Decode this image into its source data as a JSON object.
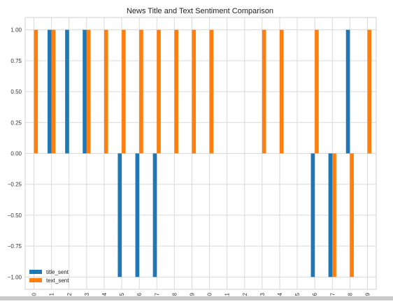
{
  "chart_data": {
    "type": "bar",
    "title": "News Title and Text Sentiment Comparison",
    "xlabel": "",
    "ylabel": "",
    "ylim": [
      -1.1,
      1.1
    ],
    "yticks": [
      1.0,
      0.75,
      0.5,
      0.25,
      0.0,
      -0.25,
      -0.5,
      -0.75,
      -1.0
    ],
    "ytick_labels": [
      "1.00",
      "0.75",
      "0.50",
      "0.25",
      "0.00",
      "−0.25",
      "−0.50",
      "−0.75",
      "−1.00"
    ],
    "categories": [
      "0",
      "1",
      "2",
      "3",
      "4",
      "5",
      "6",
      "7",
      "8",
      "9",
      "0",
      "11",
      "2",
      "3",
      "4",
      "5",
      "6",
      "7",
      "8",
      "9"
    ],
    "grid": true,
    "legend_position": "bottom-left",
    "series": [
      {
        "name": "title_sent",
        "color": "#1f77b4",
        "values": [
          0,
          1,
          1,
          1,
          0,
          -1,
          -1,
          -1,
          0,
          0,
          0,
          0,
          0,
          0,
          0,
          0,
          -1,
          -1,
          1,
          0
        ]
      },
      {
        "name": "text_sent",
        "color": "#ff7f0e",
        "values": [
          1,
          1,
          0,
          1,
          1,
          1,
          1,
          1,
          1,
          1,
          1,
          0,
          0,
          1,
          1,
          0,
          1,
          -1,
          -1,
          1
        ]
      }
    ]
  }
}
